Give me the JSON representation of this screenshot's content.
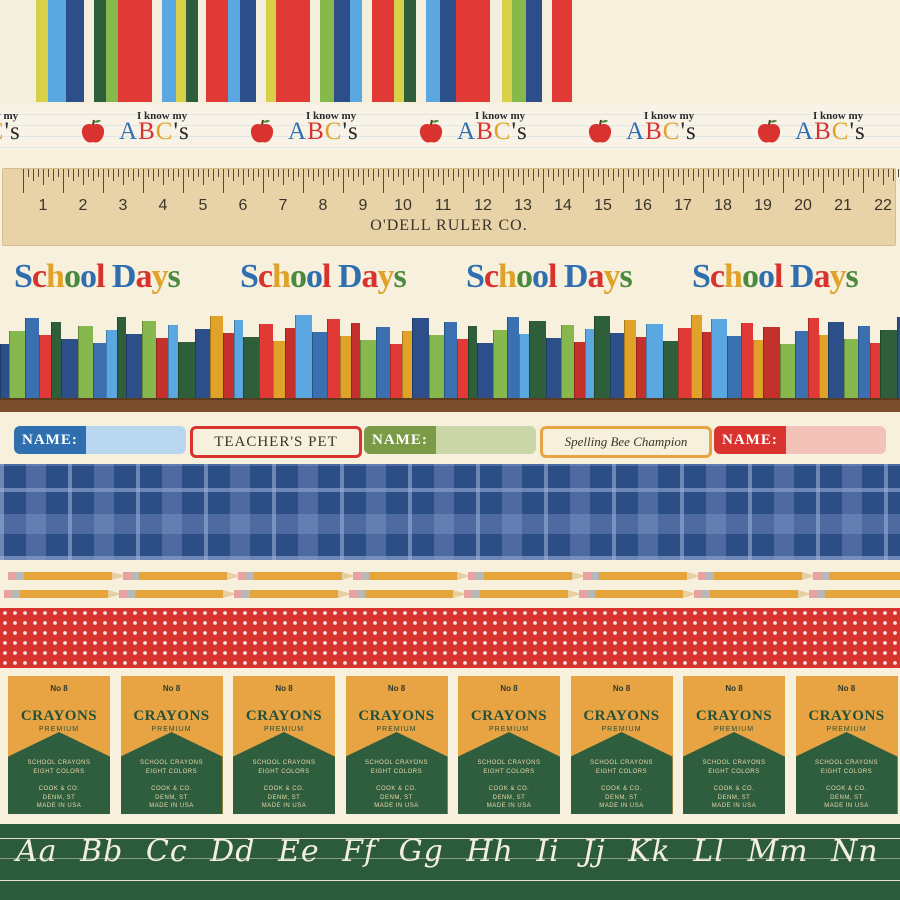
{
  "stripes": {
    "colors": [
      "#f4efdc",
      "#f4efdc",
      "#d9d04a",
      "#5ba7e2",
      "#2c4f8a",
      "#f4efdc",
      "#2f5e3a",
      "#86b84d",
      "#e13a36",
      "#e13a36",
      "#f4efdc",
      "#5ba7e2",
      "#d9d04a",
      "#2f5e3a",
      "#f4efdc",
      "#e13a36",
      "#5ba7e2",
      "#2c4f8a",
      "#f4efdc",
      "#d9d04a",
      "#e13a36",
      "#e13a36",
      "#f4efdc",
      "#86b84d",
      "#2c4f8a",
      "#5ba7e2",
      "#f4efdc",
      "#e13a36",
      "#d9d04a",
      "#2f5e3a",
      "#f4efdc",
      "#5ba7e2",
      "#2c4f8a",
      "#e13a36",
      "#e13a36",
      "#f4efdc",
      "#d9d04a",
      "#86b84d",
      "#2c4f8a",
      "#f4efdc",
      "#e13a36"
    ]
  },
  "abc": {
    "top_text": "I know my",
    "big_text_parts": [
      "A",
      "B",
      "C",
      "'s"
    ],
    "repeat": 6
  },
  "ruler": {
    "numbers": [
      "1",
      "2",
      "3",
      "4",
      "5",
      "6",
      "7",
      "8",
      "9",
      "10",
      "11",
      "12",
      "13",
      "14",
      "15",
      "16",
      "17",
      "18",
      "19",
      "20",
      "21",
      "22"
    ],
    "brand": "O'DELL RULER CO."
  },
  "school_days": {
    "words": [
      [
        "S",
        "#2f6fb0"
      ],
      [
        "c",
        "#d9332f"
      ],
      [
        "h",
        "#e0a229"
      ],
      [
        "o",
        "#4a8a3e"
      ],
      [
        "o",
        "#2f6fb0"
      ],
      [
        "l",
        "#d9332f"
      ],
      [
        " ",
        ""
      ],
      [
        "D",
        "#2f6fb0"
      ],
      [
        "a",
        "#d9332f"
      ],
      [
        "y",
        "#e0a229"
      ],
      [
        "s",
        "#4a8a3e"
      ]
    ],
    "repeat": 4
  },
  "books": {
    "palette": [
      "#2c4f8a",
      "#e13a36",
      "#5ba7e2",
      "#86b84d",
      "#e0a229",
      "#2f5e3a",
      "#3a6fb0",
      "#c4302b"
    ],
    "shelf_color": "#7a4e2c"
  },
  "labels": {
    "name_text": "NAME:",
    "teachers_pet": "TEACHER'S PET",
    "spelling": "Spelling Bee Champion",
    "name_colors": [
      [
        "#2f6fb0",
        "#b9d6f0"
      ],
      [
        "#7a9a45",
        "#cbd6a8"
      ],
      [
        "#d9332f",
        "#f2c2b8"
      ]
    ],
    "pet_border": "#d9332f",
    "spelling_border": "#e8a443"
  },
  "crayons": {
    "number": "No 8",
    "name": "CRAYONS",
    "premium": "PREMIUM",
    "line1": "SCHOOL CRAYONS",
    "line2": "EIGHT COLORS",
    "line3": "COOK & CO.",
    "line4": "DENM, ST",
    "line5": "MADE IN USA",
    "repeat": 8
  },
  "cursive": {
    "text": "Aa Bb Cc Dd Ee Ff Gg Hh Ii Jj Kk Ll Mm Nn Oo Pp Qq"
  }
}
